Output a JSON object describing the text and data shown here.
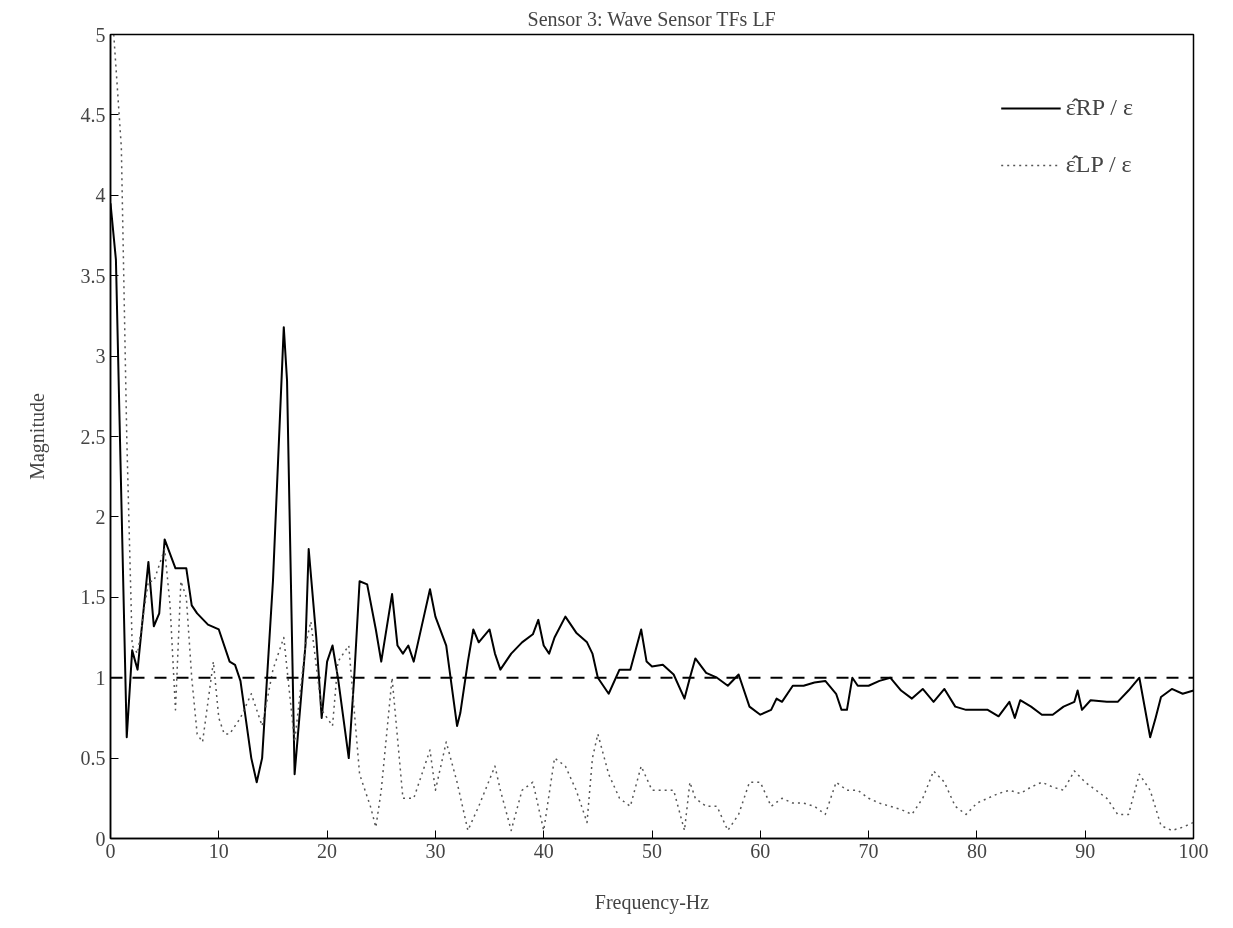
{
  "chart_data": {
    "type": "line",
    "title": "Sensor 3: Wave Sensor TFs LF",
    "xlabel": "Frequency-Hz",
    "ylabel": "Magnitude",
    "xlim": [
      0,
      100
    ],
    "xticks": [
      0,
      10,
      20,
      30,
      40,
      50,
      60,
      70,
      80,
      90,
      100
    ],
    "ylim": [
      0,
      5
    ],
    "yticks": [
      0,
      0.5,
      1,
      1.5,
      2,
      2.5,
      3,
      3.5,
      4,
      4.5,
      5
    ],
    "grid": false,
    "legend": "top right",
    "ref_lines": [
      {
        "axis": "y",
        "value": 1,
        "label": null,
        "color": "#000000",
        "line_style": "dashed"
      }
    ],
    "series": [
      {
        "name": "ε̂RP / ε",
        "color": "#000000",
        "line_style": "solid",
        "x": [
          0,
          0.5,
          1.5,
          2,
          2.5,
          3.5,
          4,
          4.5,
          5,
          6,
          7,
          7.5,
          8,
          9,
          10,
          11,
          11.5,
          12,
          13,
          13.5,
          14,
          15,
          16,
          16.3,
          17,
          18,
          18.3,
          19,
          19.5,
          20,
          20.5,
          21,
          22,
          22.5,
          23,
          23.7,
          24.5,
          25,
          26,
          26.5,
          27,
          27.5,
          28,
          29,
          29.5,
          30,
          31,
          32,
          32.3,
          33,
          33.5,
          34,
          35,
          35.5,
          36,
          37,
          38,
          39,
          39.5,
          40,
          40.5,
          41,
          42,
          43,
          44,
          44.5,
          45,
          46,
          47,
          48,
          49,
          49.5,
          50,
          51,
          52,
          53,
          53.5,
          54,
          55,
          56,
          57,
          58,
          59,
          60,
          61,
          61.5,
          62,
          63,
          64,
          65,
          66,
          67,
          67.5,
          68,
          68.5,
          69,
          70,
          71,
          72,
          73,
          74,
          75,
          76,
          77,
          78,
          79,
          80,
          81,
          82,
          83,
          83.5,
          84,
          85,
          86,
          87,
          88,
          89,
          89.3,
          89.7,
          90.5,
          92,
          93,
          94,
          95,
          96,
          96.5,
          97,
          98,
          99,
          100
        ],
        "values": [
          3.95,
          3.6,
          0.63,
          1.17,
          1.05,
          1.72,
          1.32,
          1.4,
          1.86,
          1.68,
          1.68,
          1.45,
          1.4,
          1.33,
          1.3,
          1.1,
          1.08,
          0.98,
          0.5,
          0.35,
          0.5,
          1.6,
          3.18,
          2.85,
          0.4,
          1.2,
          1.8,
          1.25,
          0.75,
          1.1,
          1.2,
          1.0,
          0.5,
          1.0,
          1.6,
          1.58,
          1.3,
          1.1,
          1.52,
          1.2,
          1.15,
          1.2,
          1.1,
          1.4,
          1.55,
          1.38,
          1.2,
          0.7,
          0.78,
          1.1,
          1.3,
          1.22,
          1.3,
          1.15,
          1.05,
          1.15,
          1.22,
          1.27,
          1.36,
          1.2,
          1.15,
          1.25,
          1.38,
          1.28,
          1.22,
          1.15,
          1.0,
          0.9,
          1.05,
          1.05,
          1.3,
          1.1,
          1.07,
          1.08,
          1.02,
          0.87,
          1.0,
          1.12,
          1.03,
          1.0,
          0.95,
          1.02,
          0.82,
          0.77,
          0.8,
          0.87,
          0.85,
          0.95,
          0.95,
          0.97,
          0.98,
          0.9,
          0.8,
          0.8,
          1.0,
          0.95,
          0.95,
          0.98,
          1.0,
          0.92,
          0.87,
          0.93,
          0.85,
          0.93,
          0.82,
          0.8,
          0.8,
          0.8,
          0.76,
          0.85,
          0.75,
          0.86,
          0.82,
          0.77,
          0.77,
          0.82,
          0.85,
          0.92,
          0.8,
          0.86,
          0.85,
          0.85,
          0.92,
          1.0,
          0.63,
          0.75,
          0.88,
          0.93,
          0.9,
          0.92
        ]
      },
      {
        "name": "ε̂LP / ε",
        "color": "#555555",
        "line_style": "dotted",
        "x": [
          0.3,
          1,
          1.5,
          2,
          2.5,
          3.5,
          4,
          5,
          5.5,
          6,
          6.5,
          7,
          7.5,
          8,
          8.5,
          9.5,
          10,
          10.5,
          11,
          12,
          13,
          14,
          15,
          16,
          17,
          18,
          18.5,
          19.5,
          20.5,
          21,
          22,
          23,
          24,
          24.5,
          25,
          26,
          27,
          28,
          29.5,
          30,
          31,
          32,
          33,
          34,
          35.5,
          36,
          37,
          38,
          39,
          40,
          41,
          42,
          43,
          44,
          44.5,
          45,
          46,
          47,
          48,
          49,
          50,
          51,
          52,
          53,
          53.5,
          54,
          55,
          56,
          57,
          58,
          59,
          60,
          61,
          62,
          63,
          64,
          65,
          66,
          67,
          68,
          69,
          70,
          71,
          72,
          73,
          74,
          75,
          76,
          77,
          78,
          79,
          80,
          81,
          82,
          83,
          84,
          85,
          86,
          87,
          88,
          89,
          90,
          91,
          92,
          93,
          94,
          95,
          96,
          97,
          98,
          99,
          100
        ],
        "values": [
          5,
          4.3,
          2.5,
          1.2,
          1.15,
          1.6,
          1.6,
          1.8,
          1.45,
          0.8,
          1.6,
          1.5,
          1.0,
          0.65,
          0.6,
          1.1,
          0.75,
          0.65,
          0.65,
          0.75,
          0.9,
          0.7,
          1.05,
          1.25,
          0.6,
          1.2,
          1.35,
          0.8,
          0.7,
          1.1,
          1.2,
          0.4,
          0.2,
          0.07,
          0.3,
          1.0,
          0.25,
          0.25,
          0.55,
          0.3,
          0.6,
          0.35,
          0.05,
          0.2,
          0.45,
          0.3,
          0.05,
          0.3,
          0.35,
          0.05,
          0.5,
          0.45,
          0.3,
          0.1,
          0.5,
          0.65,
          0.4,
          0.25,
          0.2,
          0.45,
          0.3,
          0.3,
          0.3,
          0.05,
          0.35,
          0.25,
          0.2,
          0.2,
          0.05,
          0.15,
          0.35,
          0.35,
          0.2,
          0.25,
          0.22,
          0.22,
          0.2,
          0.15,
          0.35,
          0.3,
          0.3,
          0.25,
          0.22,
          0.2,
          0.18,
          0.15,
          0.25,
          0.42,
          0.35,
          0.2,
          0.15,
          0.22,
          0.25,
          0.28,
          0.3,
          0.28,
          0.32,
          0.35,
          0.32,
          0.3,
          0.42,
          0.35,
          0.3,
          0.25,
          0.15,
          0.15,
          0.4,
          0.3,
          0.08,
          0.05,
          0.07,
          0.1
        ]
      }
    ]
  }
}
